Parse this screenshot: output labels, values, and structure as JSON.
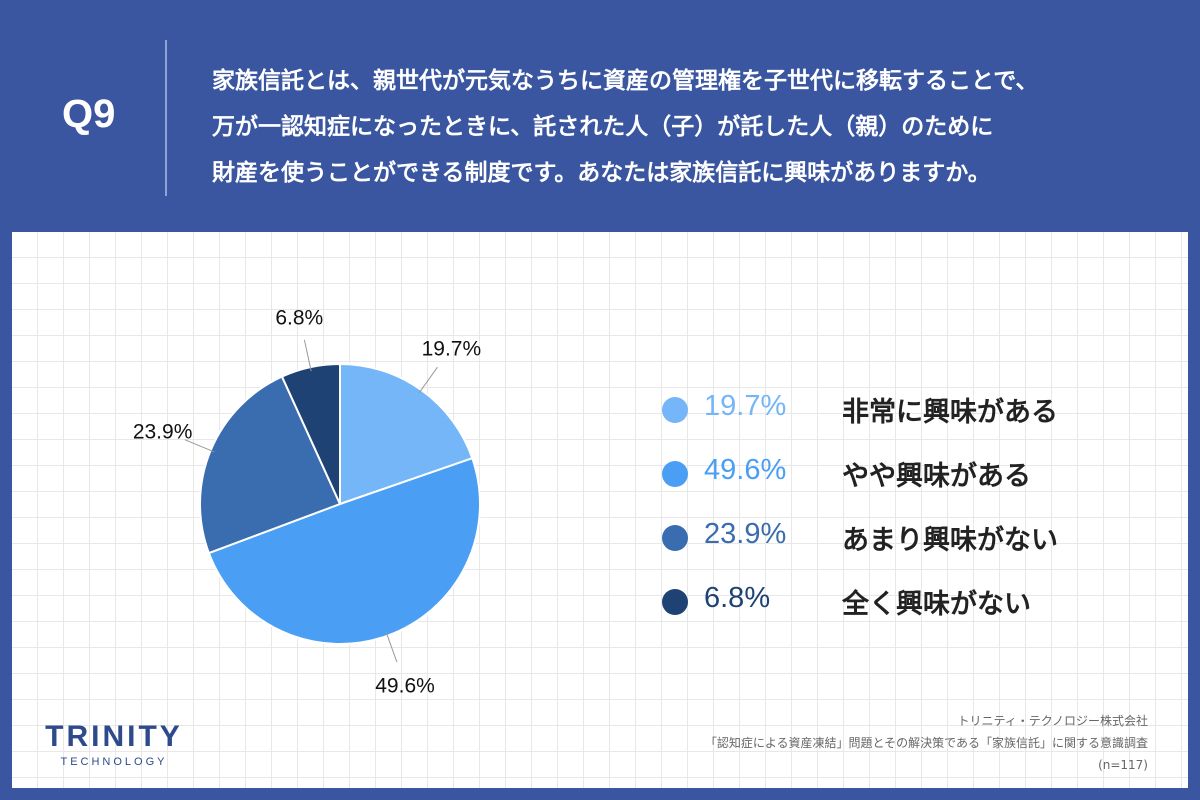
{
  "header": {
    "q_label": "Q9",
    "question_lines": [
      "家族信託とは、親世代が元気なうちに資産の管理権を子世代に移転することで、",
      "万が一認知症になったときに、託された人（子）が託した人（親）のために",
      "財産を使うことができる制度です。あなたは家族信託に興味がありますか。"
    ]
  },
  "chart_data": {
    "type": "pie",
    "slices": [
      {
        "label": "非常に興味がある",
        "value": 19.7,
        "display": "19.7%",
        "color": "#74b6f7"
      },
      {
        "label": "やや興味がある",
        "value": 49.6,
        "display": "49.6%",
        "color": "#4a9ff4"
      },
      {
        "label": "あまり興味がない",
        "value": 23.9,
        "display": "23.9%",
        "color": "#3a6daf"
      },
      {
        "label": "全く興味がない",
        "value": 6.8,
        "display": "6.8%",
        "color": "#1f4274"
      }
    ],
    "start": "12 o'clock",
    "direction": "clockwise",
    "legend_position": "right"
  },
  "legend": [
    {
      "value": "19.7%",
      "label": "非常に興味がある",
      "color": "#74b6f7"
    },
    {
      "value": "49.6%",
      "label": "やや興味がある",
      "color": "#4a9ff4"
    },
    {
      "value": "23.9%",
      "label": "あまり興味がない",
      "color": "#3a6daf"
    },
    {
      "value": "6.8%",
      "label": "全く興味がない",
      "color": "#1f4274"
    }
  ],
  "logo": {
    "main": "TRINITY",
    "sub": "TECHNOLOGY"
  },
  "footnote": {
    "company": "トリニティ・テクノロジー株式会社",
    "survey": "「認知症による資産凍結」問題とその解決策である「家族信託」に関する意識調査",
    "sample": "(n=117)"
  },
  "colors": {
    "header_bg": "#3a56a0",
    "panel_bg": "#ffffff",
    "grid": "#e8e8e8",
    "brand": "#2e4a8c"
  }
}
